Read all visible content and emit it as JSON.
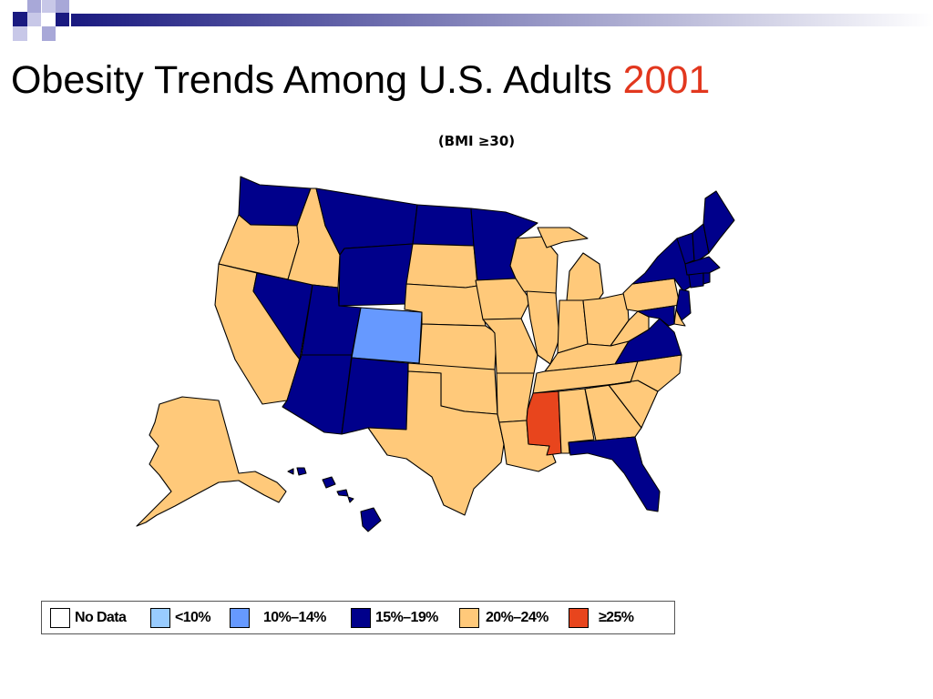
{
  "slide": {
    "title_main": "Obesity Trends Among U.S. Adults",
    "title_year": "2001",
    "subtitle": "(BMI ≥30)"
  },
  "colors": {
    "no_data": "#ffffff",
    "lt10": "#99ccff",
    "10_14": "#6699ff",
    "15_19": "#00008b",
    "20_24": "#ffc97a",
    "ge25": "#e8451d"
  },
  "legend": [
    {
      "label": "No Data",
      "color_key": "no_data"
    },
    {
      "label": "<10%",
      "color_key": "lt10"
    },
    {
      "label": "10%–14%",
      "color_key": "10_14"
    },
    {
      "label": "15%–19%",
      "color_key": "15_19"
    },
    {
      "label": "20%–24%",
      "color_key": "20_24"
    },
    {
      "label": "≥25%",
      "color_key": "ge25"
    }
  ],
  "states": {
    "WA": "15_19",
    "OR": "20_24",
    "CA": "20_24",
    "NV": "15_19",
    "ID": "20_24",
    "MT": "15_19",
    "WY": "15_19",
    "UT": "15_19",
    "AZ": "15_19",
    "CO": "10_14",
    "NM": "15_19",
    "ND": "15_19",
    "SD": "20_24",
    "NE": "20_24",
    "KS": "20_24",
    "OK": "20_24",
    "TX": "20_24",
    "MN": "15_19",
    "IA": "20_24",
    "MO": "20_24",
    "AR": "20_24",
    "LA": "20_24",
    "WI": "20_24",
    "IL": "20_24",
    "MI": "20_24",
    "IN": "20_24",
    "OH": "20_24",
    "KY": "20_24",
    "TN": "20_24",
    "MS": "ge25",
    "AL": "20_24",
    "GA": "20_24",
    "FL": "15_19",
    "SC": "20_24",
    "NC": "20_24",
    "VA": "15_19",
    "WV": "20_24",
    "PA": "20_24",
    "NY": "15_19",
    "VT": "15_19",
    "NH": "15_19",
    "ME": "15_19",
    "MA": "15_19",
    "CT": "15_19",
    "RI": "15_19",
    "NJ": "15_19",
    "DE": "20_24",
    "MD": "15_19",
    "AK": "20_24",
    "HI": "15_19"
  }
}
